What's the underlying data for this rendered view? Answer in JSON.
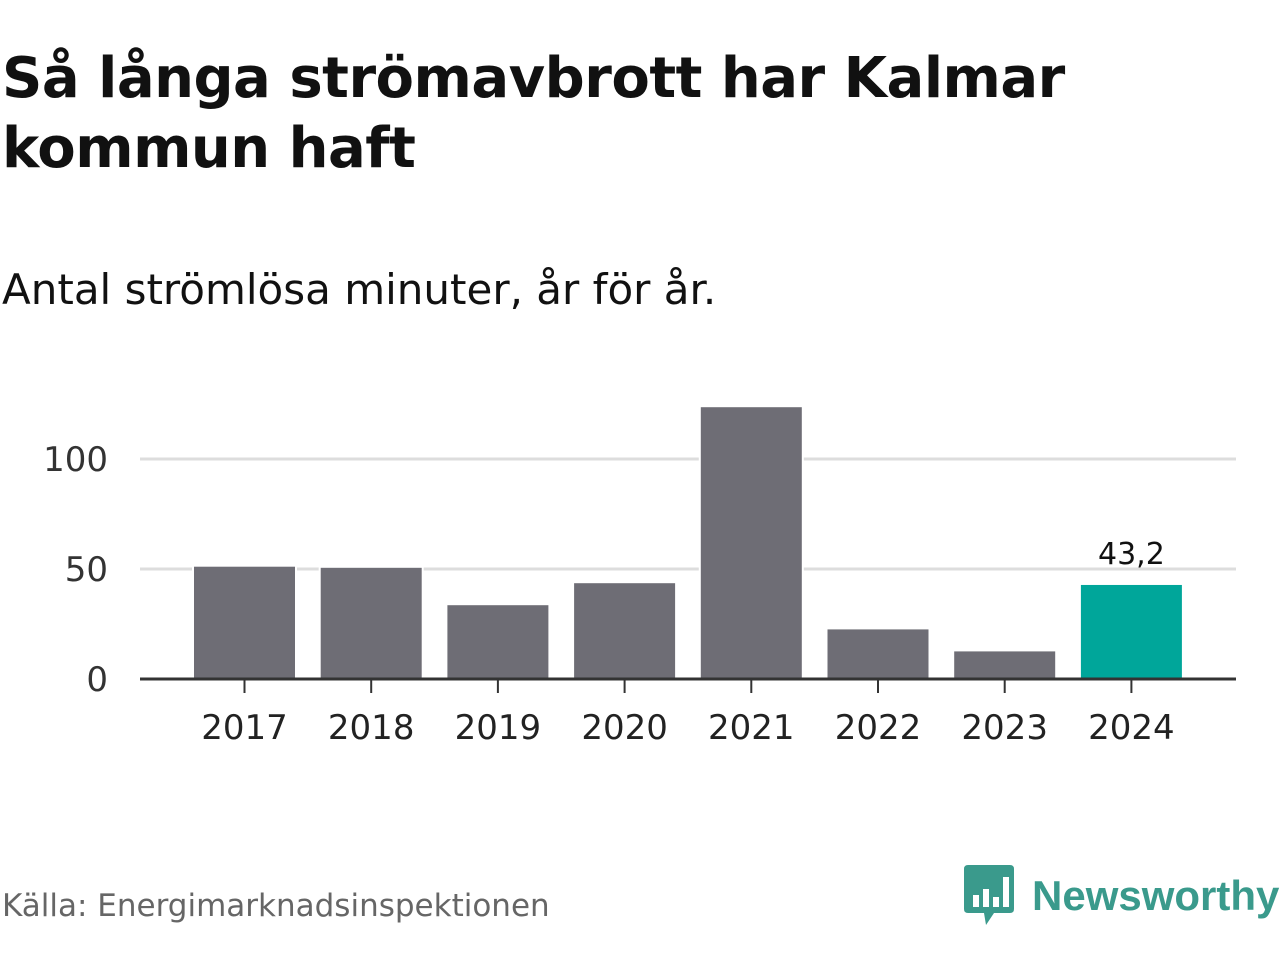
{
  "header": {
    "title": "Så långa strömavbrott har Kalmar kommun haft",
    "subtitle": "Antal strömlösa minuter, år för år."
  },
  "footer": {
    "source": "Källa: Energimarknadsinspektionen",
    "logo_text": "Newsworthy"
  },
  "colors": {
    "bar_default": "#6e6d75",
    "bar_highlight": "#00a69a",
    "gridline": "#dddddd",
    "axis": "#333333",
    "logo": "#3a9a8c"
  },
  "chart_data": {
    "type": "bar",
    "categories": [
      "2017",
      "2018",
      "2019",
      "2020",
      "2021",
      "2022",
      "2023",
      "2024"
    ],
    "values": [
      51.5,
      51.0,
      34.0,
      44.0,
      124.0,
      23.0,
      13.0,
      43.2
    ],
    "highlight_index": 7,
    "data_labels": [
      {
        "index": 7,
        "text": "43,2"
      }
    ],
    "ylim": [
      0,
      125
    ],
    "yticks": [
      0,
      50,
      100
    ],
    "ytick_labels": [
      "0",
      "50",
      "100"
    ],
    "grid": true,
    "legend": "none"
  }
}
